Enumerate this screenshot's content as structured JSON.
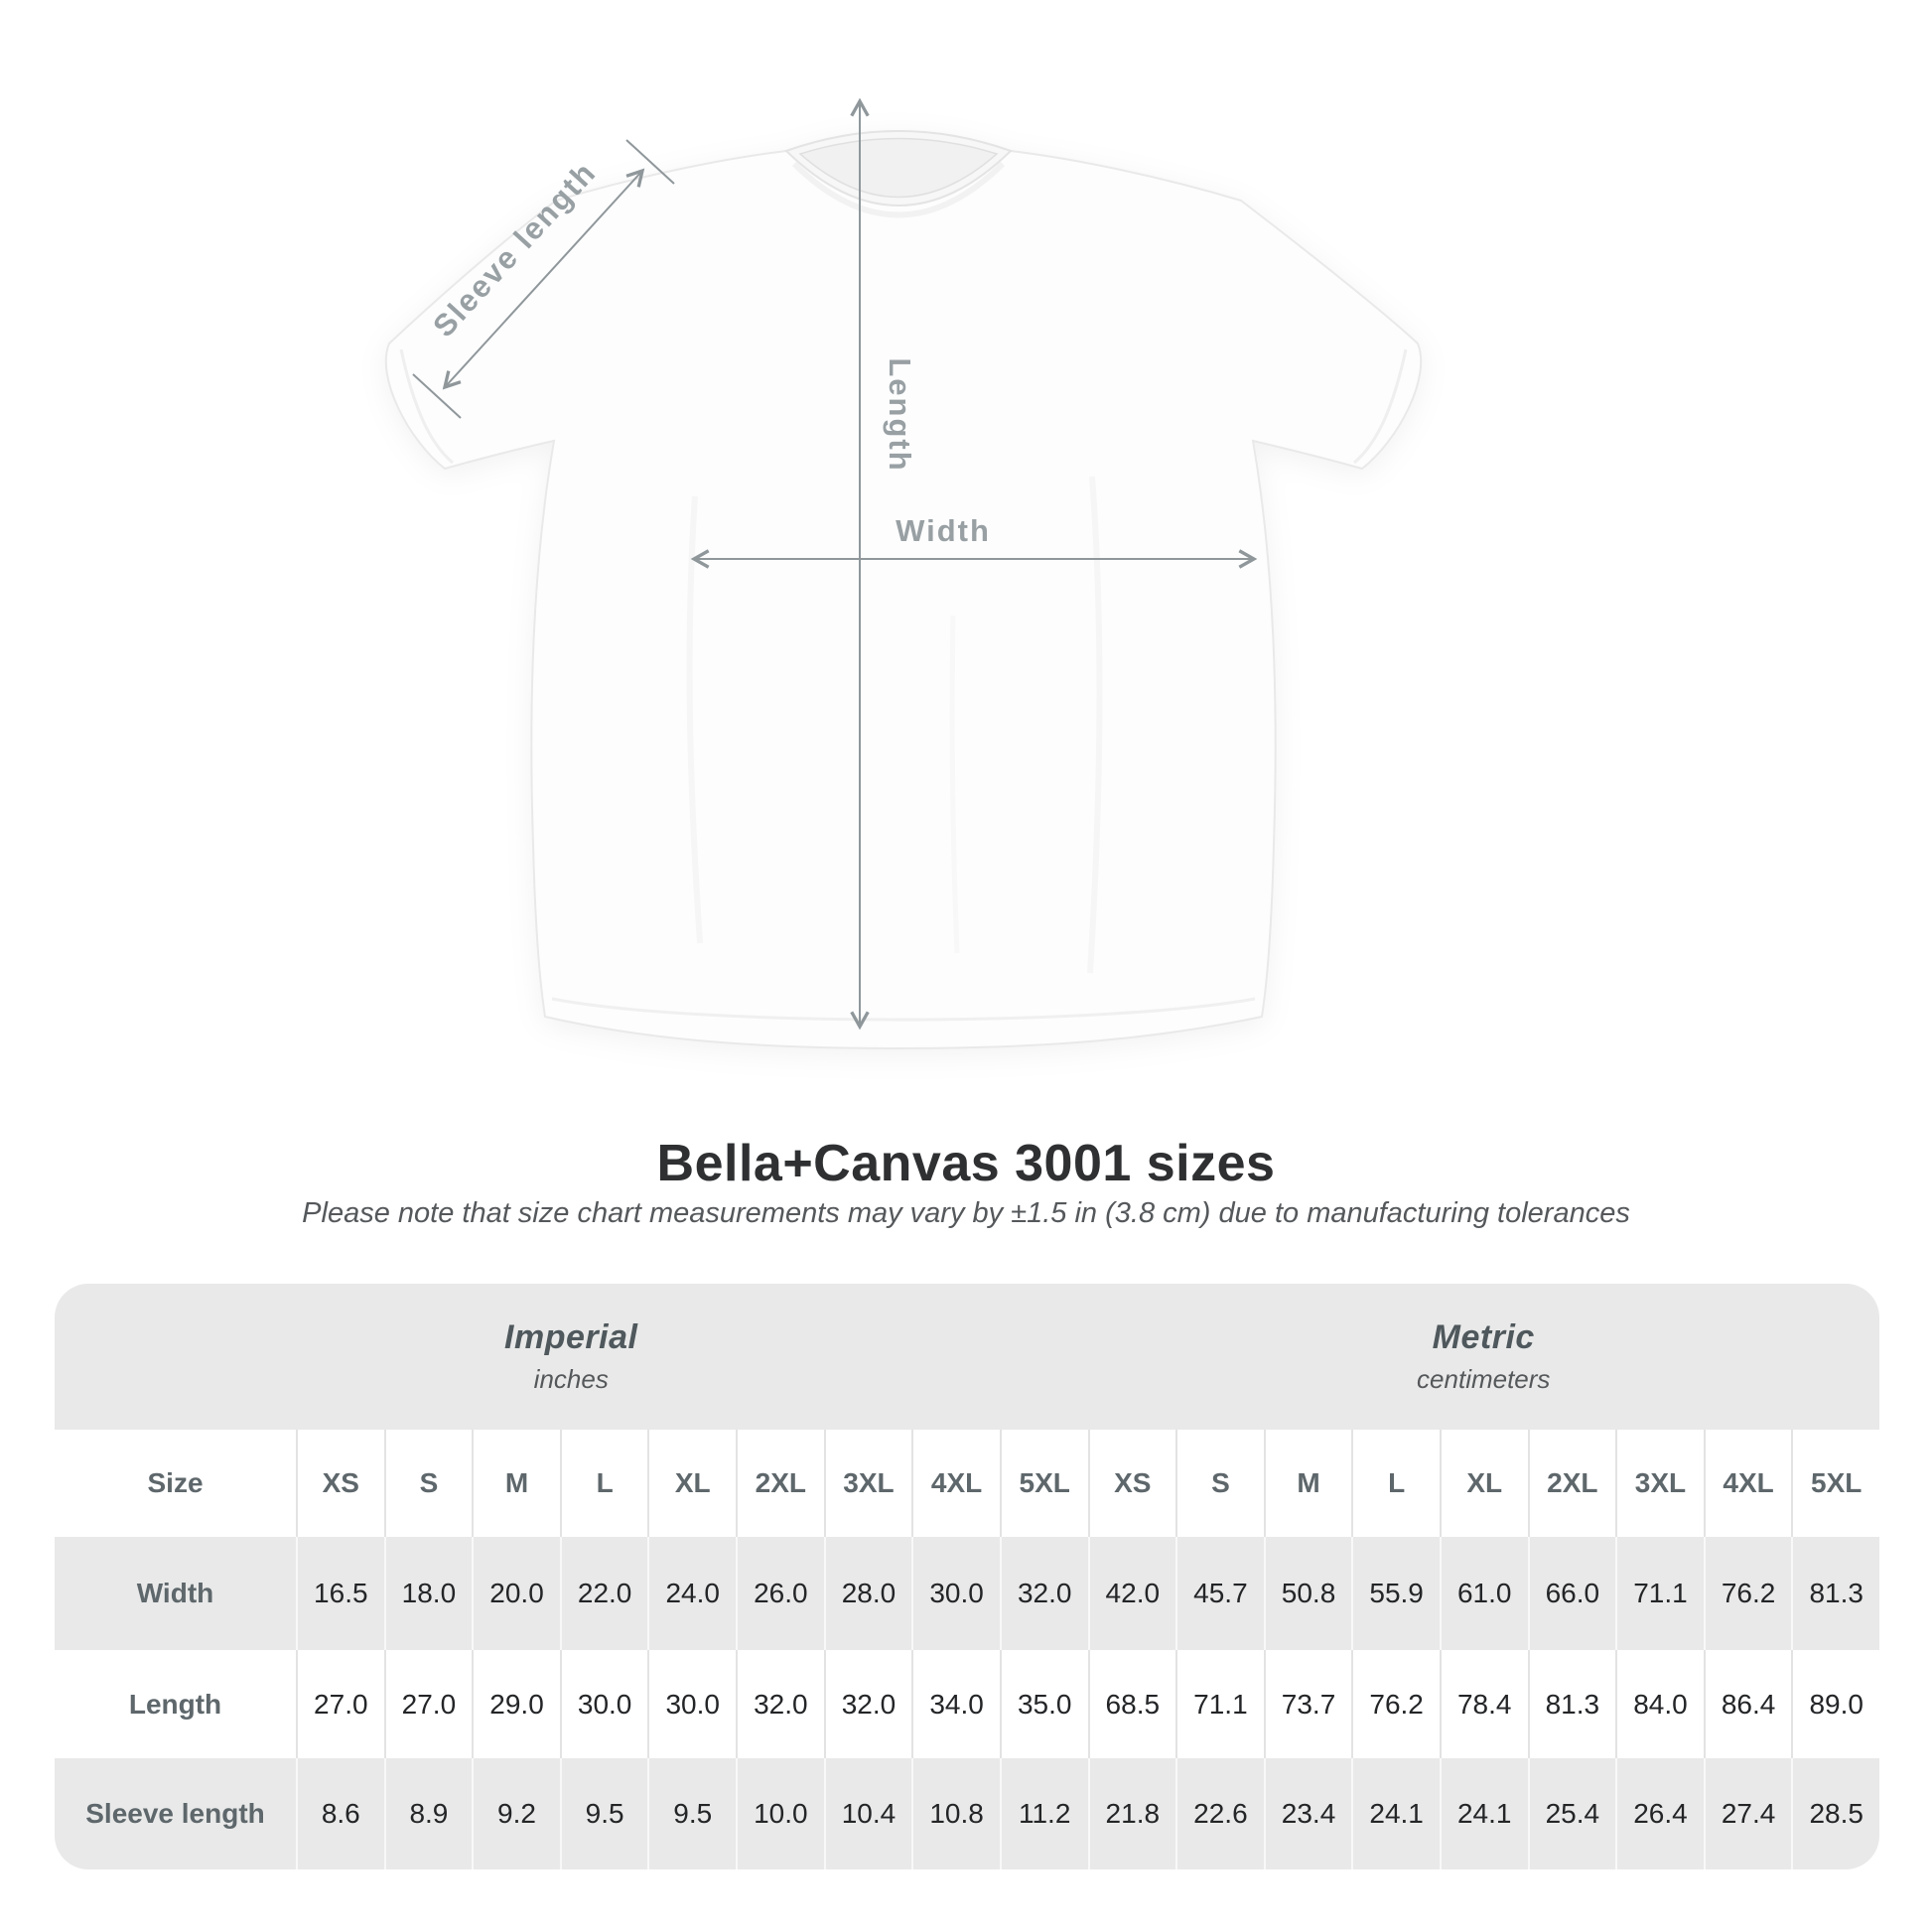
{
  "diagram": {
    "sleeve_label": "Sleeve length",
    "length_label": "Length",
    "width_label": "Width"
  },
  "header": {
    "title": "Bella+Canvas 3001 sizes",
    "subtitle": "Please note that size chart measurements may vary by ±1.5 in (3.8 cm) due to manufacturing tolerances"
  },
  "table": {
    "size_label": "Size",
    "sections": [
      {
        "name": "Imperial",
        "unit": "inches"
      },
      {
        "name": "Metric",
        "unit": "centimeters"
      }
    ],
    "sizes": [
      "XS",
      "S",
      "M",
      "L",
      "XL",
      "2XL",
      "3XL",
      "4XL",
      "5XL"
    ],
    "rows": [
      {
        "label": "Width",
        "imperial": [
          "16.5",
          "18.0",
          "20.0",
          "22.0",
          "24.0",
          "26.0",
          "28.0",
          "30.0",
          "32.0"
        ],
        "metric": [
          "42.0",
          "45.7",
          "50.8",
          "55.9",
          "61.0",
          "66.0",
          "71.1",
          "76.2",
          "81.3"
        ]
      },
      {
        "label": "Length",
        "imperial": [
          "27.0",
          "27.0",
          "29.0",
          "30.0",
          "30.0",
          "32.0",
          "32.0",
          "34.0",
          "35.0"
        ],
        "metric": [
          "68.5",
          "71.1",
          "73.7",
          "76.2",
          "78.4",
          "81.3",
          "84.0",
          "86.4",
          "89.0"
        ]
      },
      {
        "label": "Sleeve length",
        "imperial": [
          "8.6",
          "8.9",
          "9.2",
          "9.5",
          "9.5",
          "10.0",
          "10.4",
          "10.8",
          "11.2"
        ],
        "metric": [
          "21.8",
          "22.6",
          "23.4",
          "24.1",
          "24.1",
          "25.4",
          "26.4",
          "27.4",
          "28.5"
        ]
      }
    ]
  },
  "chart_data": {
    "type": "table",
    "title": "Bella+Canvas 3001 sizes",
    "tolerance_note": "±1.5 in (3.8 cm)",
    "columns": [
      "XS",
      "S",
      "M",
      "L",
      "XL",
      "2XL",
      "3XL",
      "4XL",
      "5XL"
    ],
    "units": {
      "imperial": "inches",
      "metric": "centimeters"
    },
    "measurements": {
      "width_in": [
        16.5,
        18.0,
        20.0,
        22.0,
        24.0,
        26.0,
        28.0,
        30.0,
        32.0
      ],
      "width_cm": [
        42.0,
        45.7,
        50.8,
        55.9,
        61.0,
        66.0,
        71.1,
        76.2,
        81.3
      ],
      "length_in": [
        27.0,
        27.0,
        29.0,
        30.0,
        30.0,
        32.0,
        32.0,
        34.0,
        35.0
      ],
      "length_cm": [
        68.5,
        71.1,
        73.7,
        76.2,
        78.4,
        81.3,
        84.0,
        86.4,
        89.0
      ],
      "sleeve_in": [
        8.6,
        8.9,
        9.2,
        9.5,
        9.5,
        10.0,
        10.4,
        10.8,
        11.2
      ],
      "sleeve_cm": [
        21.8,
        22.6,
        23.4,
        24.1,
        24.1,
        25.4,
        26.4,
        27.4,
        28.5
      ]
    }
  },
  "colors": {
    "table_band": "#e9e9e9",
    "label_text": "#5e676b",
    "value_text": "#232527",
    "title_text": "#2e3032",
    "diagram_label": "#98a0a4",
    "arrow": "#8f979b"
  }
}
